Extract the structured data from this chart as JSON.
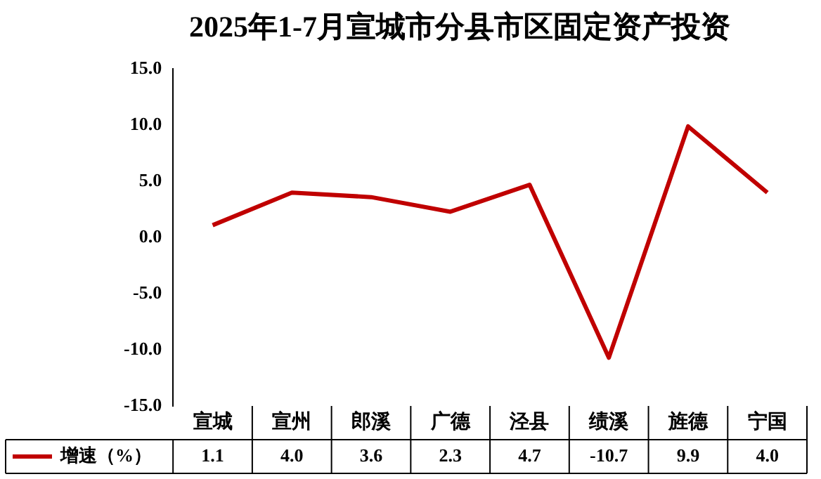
{
  "chart_data": {
    "type": "line",
    "title": "2025年1-7月宣城市分县市区固定资产投资",
    "categories": [
      "宣城",
      "宣州",
      "郎溪",
      "广德",
      "泾县",
      "绩溪",
      "旌德",
      "宁国"
    ],
    "series": [
      {
        "name": "增速（%）",
        "color": "#c00000",
        "values": [
          1.1,
          4.0,
          3.6,
          2.3,
          4.7,
          -10.7,
          9.9,
          4.0
        ],
        "value_labels": [
          "1.1",
          "4.0",
          "3.6",
          "2.3",
          "4.7",
          "-10.7",
          "9.9",
          "4.0"
        ]
      }
    ],
    "ylim": [
      -15,
      15
    ],
    "yticks": [
      {
        "value": -15,
        "label": "-15.0"
      },
      {
        "value": -10,
        "label": "-10.0"
      },
      {
        "value": -5,
        "label": "-5.0"
      },
      {
        "value": 0,
        "label": "0.0"
      },
      {
        "value": 5,
        "label": "5.0"
      },
      {
        "value": 10,
        "label": "10.0"
      },
      {
        "value": 15,
        "label": "15.0"
      }
    ],
    "grid": false,
    "legend": "bottom",
    "marker": "none",
    "line_style": "solid"
  }
}
